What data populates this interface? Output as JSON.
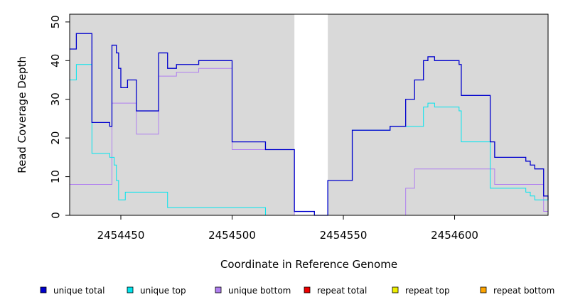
{
  "chart_data": {
    "type": "line",
    "xlabel": "Coordinate in Reference Genome",
    "ylabel": "Read Coverage Depth",
    "xlim": [
      2454427,
      2454642
    ],
    "ylim": [
      0,
      52
    ],
    "x_ticks": [
      2454450,
      2454500,
      2454550,
      2454600
    ],
    "y_ticks": [
      0,
      10,
      20,
      30,
      40,
      50
    ],
    "shaded_regions": [
      [
        2454427,
        2454528
      ],
      [
        2454543,
        2454642
      ]
    ],
    "legend_position": "bottom",
    "series": [
      {
        "name": "unique total",
        "color": "#0000cd",
        "steps": [
          [
            2454427,
            43
          ],
          [
            2454430,
            47
          ],
          [
            2454437,
            24
          ],
          [
            2454445,
            23
          ],
          [
            2454446,
            44
          ],
          [
            2454448,
            42
          ],
          [
            2454449,
            38
          ],
          [
            2454450,
            33
          ],
          [
            2454453,
            35
          ],
          [
            2454457,
            27
          ],
          [
            2454467,
            42
          ],
          [
            2454471,
            38
          ],
          [
            2454475,
            39
          ],
          [
            2454485,
            40
          ],
          [
            2454500,
            19
          ],
          [
            2454515,
            17
          ],
          [
            2454528,
            1
          ],
          [
            2454537,
            0
          ],
          [
            2454543,
            9
          ],
          [
            2454554,
            22
          ],
          [
            2454571,
            23
          ],
          [
            2454578,
            30
          ],
          [
            2454582,
            35
          ],
          [
            2454586,
            40
          ],
          [
            2454588,
            41
          ],
          [
            2454591,
            40
          ],
          [
            2454602,
            39
          ],
          [
            2454603,
            31
          ],
          [
            2454616,
            19
          ],
          [
            2454618,
            15
          ],
          [
            2454632,
            14
          ],
          [
            2454634,
            13
          ],
          [
            2454636,
            12
          ],
          [
            2454640,
            5
          ],
          [
            2454642,
            4
          ]
        ]
      },
      {
        "name": "unique top",
        "color": "#00e5ee",
        "steps": [
          [
            2454427,
            35
          ],
          [
            2454430,
            39
          ],
          [
            2454437,
            16
          ],
          [
            2454445,
            15
          ],
          [
            2454447,
            13
          ],
          [
            2454448,
            9
          ],
          [
            2454449,
            4
          ],
          [
            2454452,
            6
          ],
          [
            2454471,
            2
          ],
          [
            2454515,
            0
          ],
          [
            2454543,
            9
          ],
          [
            2454554,
            22
          ],
          [
            2454571,
            23
          ],
          [
            2454586,
            28
          ],
          [
            2454588,
            29
          ],
          [
            2454591,
            28
          ],
          [
            2454602,
            27
          ],
          [
            2454603,
            19
          ],
          [
            2454616,
            7
          ],
          [
            2454632,
            6
          ],
          [
            2454634,
            5
          ],
          [
            2454636,
            4
          ],
          [
            2454642,
            4
          ]
        ]
      },
      {
        "name": "unique bottom",
        "color": "#b07ff0",
        "steps": [
          [
            2454427,
            8
          ],
          [
            2454446,
            29
          ],
          [
            2454457,
            21
          ],
          [
            2454467,
            36
          ],
          [
            2454475,
            37
          ],
          [
            2454485,
            38
          ],
          [
            2454500,
            17
          ],
          [
            2454528,
            0
          ],
          [
            2454578,
            7
          ],
          [
            2454582,
            12
          ],
          [
            2454618,
            8
          ],
          [
            2454640,
            1
          ],
          [
            2454642,
            1
          ]
        ]
      },
      {
        "name": "repeat total",
        "color": "#ee0000",
        "steps": [
          [
            2454427,
            0
          ],
          [
            2454642,
            0
          ]
        ]
      },
      {
        "name": "repeat top",
        "color": "#eeee00",
        "steps": [
          [
            2454427,
            0
          ],
          [
            2454642,
            0
          ]
        ]
      },
      {
        "name": "repeat bottom",
        "color": "#ffa500",
        "steps": [
          [
            2454427,
            0
          ],
          [
            2454642,
            0
          ]
        ]
      }
    ]
  }
}
